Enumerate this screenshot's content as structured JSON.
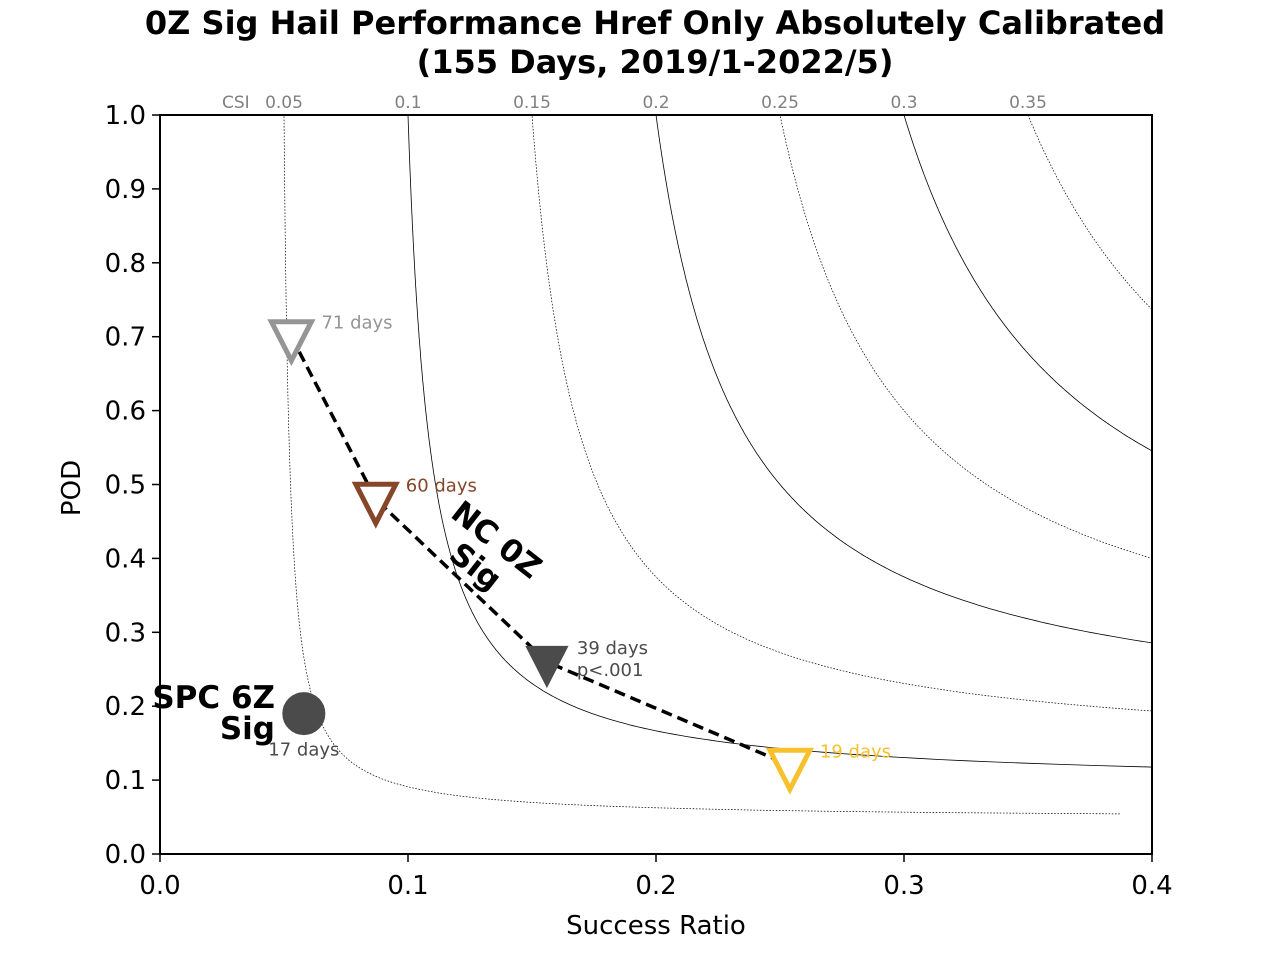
{
  "chart_data": {
    "type": "scatter",
    "title_line1": "0Z Sig Hail Performance Href Only Absolutely Calibrated",
    "title_line2": "(155 Days, 2019/1-2022/5)",
    "xlabel": "Success Ratio",
    "ylabel": "POD",
    "xlim": [
      0.0,
      0.4
    ],
    "ylim": [
      0.0,
      1.0
    ],
    "xticks": [
      "0.0",
      "0.1",
      "0.2",
      "0.3",
      "0.4"
    ],
    "yticks": [
      "0.0",
      "0.1",
      "0.2",
      "0.3",
      "0.4",
      "0.5",
      "0.6",
      "0.7",
      "0.8",
      "0.9",
      "1.0"
    ],
    "csi_axis_label": "CSI",
    "csi_contours": [
      {
        "csi": 0.05,
        "label": "0.05",
        "style": "dotted"
      },
      {
        "csi": 0.1,
        "label": "0.1",
        "style": "solid"
      },
      {
        "csi": 0.15,
        "label": "0.15",
        "style": "dotted"
      },
      {
        "csi": 0.2,
        "label": "0.2",
        "style": "solid"
      },
      {
        "csi": 0.25,
        "label": "0.25",
        "style": "dotted"
      },
      {
        "csi": 0.3,
        "label": "0.3",
        "style": "solid"
      },
      {
        "csi": 0.35,
        "label": "0.35",
        "style": "dotted"
      }
    ],
    "series": [
      {
        "label": "NC 0Z Sig",
        "marker": "triangle-down",
        "points": [
          {
            "x": 0.053,
            "y": 0.7,
            "days_label": "71 days",
            "color": "#959595",
            "filled": false
          },
          {
            "x": 0.087,
            "y": 0.48,
            "days_label": "60 days",
            "color": "#864629",
            "filled": false
          },
          {
            "x": 0.156,
            "y": 0.26,
            "days_label": "39 days",
            "sig_label": "p<.001",
            "color": "#4b4b4b",
            "filled": true
          },
          {
            "x": 0.254,
            "y": 0.12,
            "days_label": "19 days",
            "color": "#f6c12c",
            "filled": false
          }
        ]
      },
      {
        "label_line1": "SPC 6Z",
        "label_line2": "Sig",
        "marker": "circle",
        "points": [
          {
            "x": 0.058,
            "y": 0.19,
            "days_label": "17 days",
            "color": "#4b4b4b",
            "filled": true
          }
        ]
      }
    ]
  }
}
